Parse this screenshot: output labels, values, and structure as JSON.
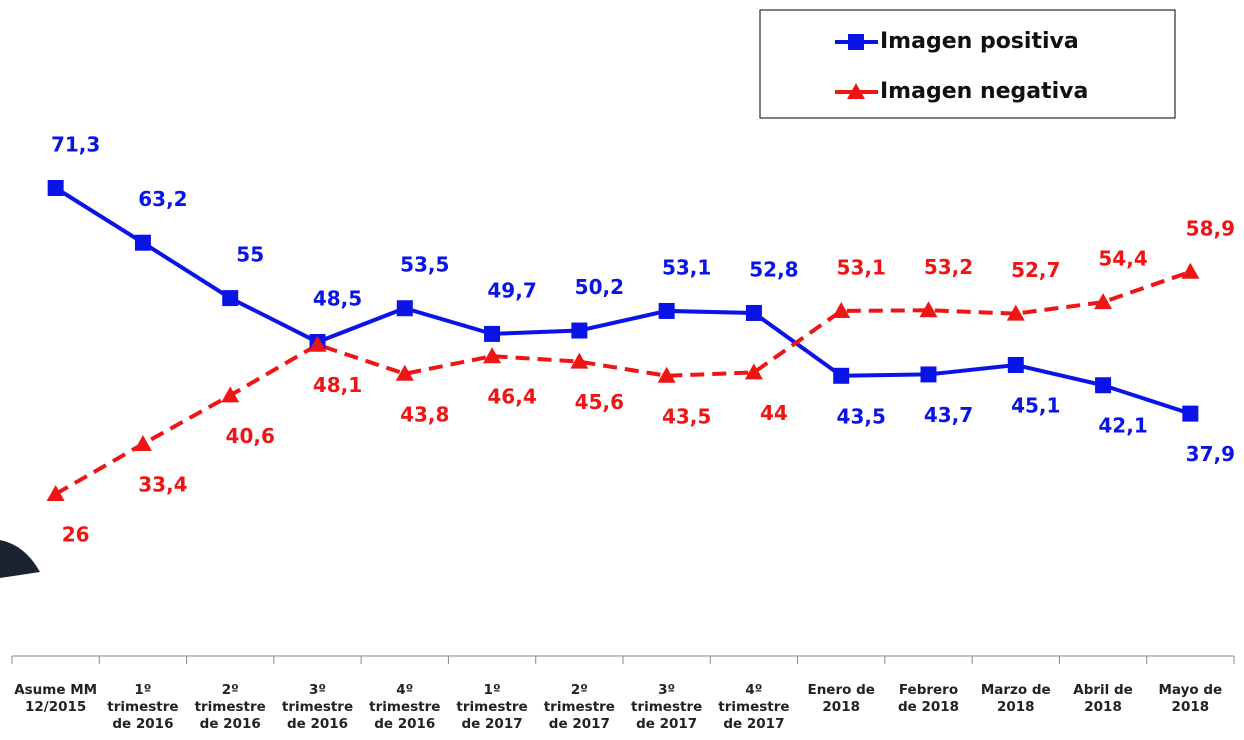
{
  "chart_data": {
    "type": "line",
    "categories": [
      "Asume MM\n12/2015",
      "1º\ntrimestre\nde 2016",
      "2º\ntrimestre\nde 2016",
      "3º\ntrimestre\nde 2016",
      "4º\ntrimestre\nde 2016",
      "1º\ntrimestre\nde 2017",
      "2º\ntrimestre\nde 2017",
      "3º\ntrimestre\nde 2017",
      "4º\ntrimestre\nde 2017",
      "Enero de\n2018",
      "Febrero\nde 2018",
      "Marzo de\n2018",
      "Abril de\n2018",
      "Mayo de\n2018"
    ],
    "series": [
      {
        "name": "Imagen positiva",
        "color": "#0a14e6",
        "marker": "square",
        "dashed": false,
        "values": [
          71.3,
          63.2,
          55,
          48.5,
          53.5,
          49.7,
          50.2,
          53.1,
          52.8,
          43.5,
          43.7,
          45.1,
          42.1,
          37.9
        ],
        "value_labels": [
          "71,3",
          "63,2",
          "55",
          "48,5",
          "53,5",
          "49,7",
          "50,2",
          "53,1",
          "52,8",
          "43,5",
          "43,7",
          "45,1",
          "42,1",
          "37,9"
        ]
      },
      {
        "name": "Imagen negativa",
        "color": "#ee1515",
        "marker": "triangle",
        "dashed": true,
        "values": [
          26,
          33.4,
          40.6,
          48.1,
          43.8,
          46.4,
          45.6,
          43.5,
          44,
          53.1,
          53.2,
          52.7,
          54.4,
          58.9
        ],
        "value_labels": [
          "26",
          "33,4",
          "40,6",
          "48,1",
          "43,8",
          "46,4",
          "45,6",
          "43,5",
          "44",
          "53,1",
          "53,2",
          "52,7",
          "54,4",
          "58,9"
        ]
      }
    ]
  }
}
